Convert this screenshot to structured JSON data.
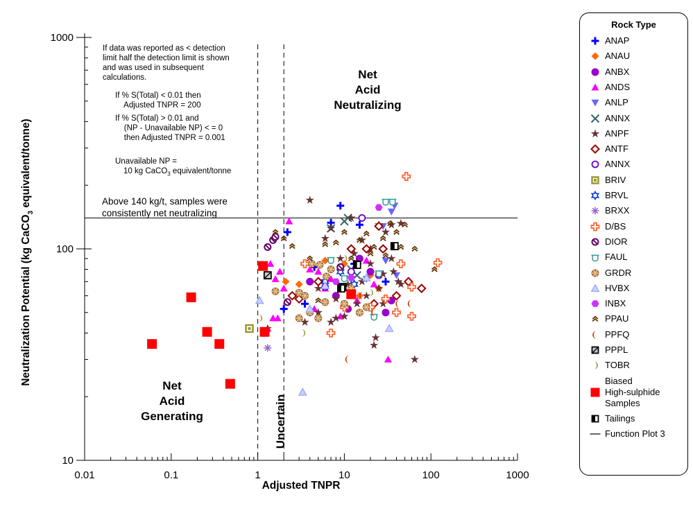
{
  "chart_data": {
    "type": "scatter",
    "xlabel": "Adjusted TNPR",
    "ylabel_parts": [
      "Neutralization Potential (kg CaCO",
      "3",
      " equivalent/tonne)"
    ],
    "xscale": "log",
    "yscale": "log",
    "xlim": [
      0.01,
      1000
    ],
    "ylim": [
      10,
      1000
    ],
    "x_ticks": [
      0.01,
      0.1,
      1,
      10,
      100,
      1000
    ],
    "x_tick_labels": [
      "0.01",
      "0.1",
      "1",
      "10",
      "100",
      "1000"
    ],
    "y_ticks": [
      10,
      100,
      1000
    ],
    "y_tick_labels": [
      "10",
      "100",
      "1000"
    ],
    "grid": false,
    "legend_position": "right",
    "reference_lines": {
      "horizontal_y": 140,
      "vertical_dashed_x": [
        1,
        2
      ]
    },
    "series": [
      {
        "name": "ANAP",
        "points": [
          [
            2.2,
            120
          ],
          [
            7,
            133
          ],
          [
            9,
            160
          ],
          [
            15,
            130
          ],
          [
            4.5,
            82
          ],
          [
            2,
            52
          ],
          [
            3.5,
            55
          ],
          [
            30,
            70
          ],
          [
            13,
            85
          ]
        ]
      },
      {
        "name": "ANAU",
        "points": [
          [
            2.1,
            70
          ],
          [
            3,
            68
          ],
          [
            6,
            88
          ],
          [
            10,
            85
          ],
          [
            20,
            75
          ],
          [
            25,
            65
          ],
          [
            15,
            60
          ]
        ]
      },
      {
        "name": "ANBX",
        "points": [
          [
            4,
            70
          ],
          [
            8,
            60
          ],
          [
            11,
            52
          ],
          [
            15,
            90
          ],
          [
            20,
            78
          ],
          [
            25,
            75
          ],
          [
            35,
            57
          ],
          [
            30,
            50
          ],
          [
            12,
            64
          ]
        ]
      },
      {
        "name": "ANDS",
        "points": [
          [
            2.3,
            135
          ],
          [
            1.4,
            85
          ],
          [
            1.6,
            72
          ],
          [
            1.8,
            78
          ],
          [
            2,
            65
          ],
          [
            1.7,
            47
          ],
          [
            1.5,
            47
          ],
          [
            1.3,
            42
          ],
          [
            4,
            80
          ],
          [
            5,
            78
          ],
          [
            6,
            65
          ],
          [
            7,
            72
          ],
          [
            4.5,
            52
          ],
          [
            9,
            48
          ],
          [
            32,
            30
          ],
          [
            14,
            57
          ],
          [
            18,
            88
          ],
          [
            22,
            68
          ]
        ]
      },
      {
        "name": "ANLP",
        "points": [
          [
            35,
            150
          ],
          [
            38,
            160
          ],
          [
            28,
            128
          ],
          [
            25,
            75
          ],
          [
            30,
            88
          ],
          [
            40,
            75
          ],
          [
            18,
            72
          ],
          [
            12,
            72
          ]
        ]
      },
      {
        "name": "ANNX",
        "points": [
          [
            10,
            135
          ],
          [
            11,
            140
          ],
          [
            7,
            125
          ],
          [
            12,
            80
          ],
          [
            14,
            75
          ]
        ]
      },
      {
        "name": "ANPF",
        "points": [
          [
            1.3,
            42
          ],
          [
            4,
            170
          ],
          [
            7,
            125
          ],
          [
            12,
            140
          ],
          [
            25,
            130
          ],
          [
            35,
            130
          ],
          [
            45,
            132
          ],
          [
            6,
            112
          ],
          [
            9,
            90
          ],
          [
            13,
            95
          ],
          [
            16,
            70
          ],
          [
            20,
            85
          ],
          [
            25,
            65
          ],
          [
            28,
            55
          ],
          [
            35,
            90
          ],
          [
            45,
            68
          ],
          [
            5,
            65
          ],
          [
            8,
            58
          ],
          [
            10,
            48
          ],
          [
            11,
            68
          ],
          [
            18,
            60
          ],
          [
            22,
            35
          ],
          [
            23,
            38
          ],
          [
            65,
            30
          ],
          [
            3.5,
            45
          ],
          [
            7,
            45
          ],
          [
            5,
            50
          ],
          [
            8,
            47
          ],
          [
            14,
            55
          ],
          [
            28,
            76
          ],
          [
            37,
            78
          ],
          [
            42,
            70
          ],
          [
            16,
            110
          ],
          [
            20,
            100
          ],
          [
            30,
            120
          ]
        ]
      },
      {
        "name": "ANTF",
        "points": [
          [
            2.5,
            60
          ],
          [
            3,
            58
          ],
          [
            5,
            70
          ],
          [
            14,
            85
          ],
          [
            22,
            55
          ],
          [
            28,
            100
          ],
          [
            40,
            60
          ],
          [
            55,
            70
          ],
          [
            78,
            65
          ],
          [
            25,
            128
          ],
          [
            18,
            100
          ],
          [
            12,
            100
          ]
        ]
      },
      {
        "name": "ANNX",
        "points": [
          [
            16,
            140
          ],
          [
            6,
            66
          ],
          [
            12,
            78
          ]
        ]
      },
      {
        "name": "BRIV",
        "points": [
          [
            0.8,
            42
          ]
        ]
      },
      {
        "name": "BRVL",
        "points": [
          [
            6,
            70
          ],
          [
            9,
            78
          ],
          [
            13,
            68
          ]
        ]
      },
      {
        "name": "BRXX",
        "points": [
          [
            1.3,
            34
          ]
        ]
      },
      {
        "name": "D/BS",
        "points": [
          [
            52,
            220
          ],
          [
            120,
            86
          ],
          [
            60,
            66
          ],
          [
            60,
            48
          ],
          [
            40,
            50
          ],
          [
            45,
            85
          ],
          [
            30,
            58
          ],
          [
            20,
            53
          ],
          [
            3.5,
            85
          ],
          [
            7,
            40
          ],
          [
            10,
            53
          ]
        ]
      },
      {
        "name": "DIOR",
        "points": [
          [
            1.3,
            102
          ],
          [
            1.5,
            110
          ],
          [
            1.6,
            114
          ],
          [
            2.2,
            56
          ],
          [
            9,
            82
          ]
        ]
      },
      {
        "name": "FAUL",
        "points": [
          [
            30,
            168
          ],
          [
            36,
            168
          ],
          [
            22,
            48
          ],
          [
            10,
            73
          ],
          [
            25,
            77
          ],
          [
            7,
            89
          ]
        ]
      },
      {
        "name": "GRDR",
        "points": [
          [
            3,
            62
          ],
          [
            3.5,
            60
          ],
          [
            4,
            50
          ],
          [
            5,
            47
          ],
          [
            3,
            47
          ],
          [
            6,
            56
          ],
          [
            7,
            80
          ],
          [
            10,
            55
          ],
          [
            12,
            65
          ],
          [
            15,
            50
          ],
          [
            18,
            53
          ],
          [
            4.2,
            85
          ],
          [
            5.2,
            84
          ],
          [
            6.2,
            74
          ],
          [
            1.6,
            63
          ]
        ]
      },
      {
        "name": "HVBX",
        "points": [
          [
            1.05,
            57
          ],
          [
            3.3,
            21
          ],
          [
            33,
            42
          ],
          [
            4,
            52
          ],
          [
            6,
            67
          ],
          [
            18,
            73
          ]
        ]
      },
      {
        "name": "INBX",
        "points": [
          [
            25,
            157
          ],
          [
            8,
            70
          ],
          [
            12,
            73
          ]
        ]
      },
      {
        "name": "PPAU",
        "points": [
          [
            1.6,
            120
          ],
          [
            2,
            112
          ],
          [
            2.5,
            103
          ],
          [
            4,
            90
          ],
          [
            6,
            105
          ],
          [
            8,
            107
          ],
          [
            10,
            120
          ],
          [
            15,
            110
          ],
          [
            18,
            118
          ],
          [
            22,
            102
          ],
          [
            28,
            112
          ],
          [
            34,
            132
          ],
          [
            40,
            120
          ],
          [
            50,
            130
          ],
          [
            65,
            100
          ],
          [
            110,
            80
          ],
          [
            20,
            95
          ],
          [
            12,
            90
          ],
          [
            30,
            93
          ],
          [
            45,
            102
          ],
          [
            5,
            57
          ]
        ]
      },
      {
        "name": "PPFQ",
        "points": [
          [
            11,
            30
          ],
          [
            16,
            60
          ],
          [
            22,
            50
          ],
          [
            42,
            55
          ],
          [
            58,
            55
          ]
        ]
      },
      {
        "name": "PPPL",
        "points": [
          [
            1.3,
            75
          ]
        ]
      },
      {
        "name": "TOBR",
        "points": [
          [
            1.05,
            47
          ],
          [
            3.3,
            40
          ],
          [
            10,
            90
          ],
          [
            20,
            62
          ]
        ]
      },
      {
        "name": "Biased High-sulphide Samples",
        "points": [
          [
            0.06,
            35.5
          ],
          [
            0.17,
            59
          ],
          [
            0.26,
            40.5
          ],
          [
            0.36,
            35.5
          ],
          [
            0.48,
            23
          ],
          [
            1.15,
            83
          ],
          [
            1.2,
            40.5
          ],
          [
            12,
            61
          ]
        ]
      },
      {
        "name": "Tailings",
        "points": [
          [
            38,
            103
          ],
          [
            14,
            84
          ],
          [
            9.5,
            66
          ],
          [
            9.2,
            65
          ]
        ]
      }
    ]
  },
  "annotations": {
    "detection_note": [
      "If data was reported as < detection",
      "limit half the detection limit is shown",
      "and was used in subsequent",
      "calculations."
    ],
    "sulfur_note_1": [
      "If % S(Total) < 0.01 then",
      "    Adjusted TNPR = 200"
    ],
    "sulfur_note_2": [
      "If % S(Total) > 0.01 and",
      "    (NP - Unavailable NP) < = 0",
      "    then Adjusted TNPR = 0.001"
    ],
    "unavailable_np_label": "Unavailable NP =",
    "unavailable_np_value_prefix": "10 kg CaCO",
    "unavailable_np_value_sub": "3",
    "unavailable_np_value_suffix": " equivalent/tonne",
    "above_line": [
      "Above 140 kg/t, samples were",
      "consistently net neutralizing"
    ],
    "region_nan": [
      "Net",
      "Acid",
      "Neutralizing"
    ],
    "region_nag": [
      "Net",
      "Acid",
      "Generating"
    ],
    "region_uncertain": "Uncertain"
  },
  "legend": {
    "title": "Rock Type",
    "items": [
      {
        "label": "ANAP",
        "marker": "plus",
        "color": "#0000ff"
      },
      {
        "label": "ANAU",
        "marker": "diamond",
        "color": "#ff6a00"
      },
      {
        "label": "ANBX",
        "marker": "circle",
        "color": "#9900cc"
      },
      {
        "label": "ANDS",
        "marker": "triangle-up",
        "color": "#ff00ff"
      },
      {
        "label": "ANLP",
        "marker": "triangle-down",
        "color": "#6666ff"
      },
      {
        "label": "ANNX",
        "marker": "x",
        "color": "#336666"
      },
      {
        "label": "ANPF",
        "marker": "star",
        "color": "#663333"
      },
      {
        "label": "ANTF",
        "marker": "diamond-open",
        "color": "#990000"
      },
      {
        "label": "ANNX",
        "marker": "circle-open",
        "color": "#6600cc"
      },
      {
        "label": "BRIV",
        "marker": "square-dot",
        "color": "#999933"
      },
      {
        "label": "BRVL",
        "marker": "star6",
        "color": "#0033cc"
      },
      {
        "label": "BRXX",
        "marker": "asterisk",
        "color": "#9966cc"
      },
      {
        "label": "D/BS",
        "marker": "cross-open",
        "color": "#ff6633"
      },
      {
        "label": "DIOR",
        "marker": "circle-slash",
        "color": "#660066"
      },
      {
        "label": "FAUL",
        "marker": "hat",
        "color": "#339999"
      },
      {
        "label": "GRDR",
        "marker": "flower",
        "color": "#996633"
      },
      {
        "label": "HVBX",
        "marker": "triangle-light",
        "color": "#8899ff"
      },
      {
        "label": "INBX",
        "marker": "hexagon",
        "color": "#cc33ff"
      },
      {
        "label": "PPAU",
        "marker": "chevrons",
        "color": "#663300"
      },
      {
        "label": "PPFQ",
        "marker": "crescent",
        "color": "#cc3300"
      },
      {
        "label": "PPPL",
        "marker": "square-half",
        "color": "#000000"
      },
      {
        "label": "TOBR",
        "marker": "moon",
        "color": "#999933"
      },
      {
        "label": [
          "Biased",
          "High-sulphide",
          "Samples"
        ],
        "marker": "square",
        "color": "#ff0000"
      },
      {
        "label": "Tailings",
        "marker": "square-half2",
        "color": "#000000"
      },
      {
        "label": "Function Plot 3",
        "marker": "line",
        "color": "#000000"
      }
    ]
  }
}
